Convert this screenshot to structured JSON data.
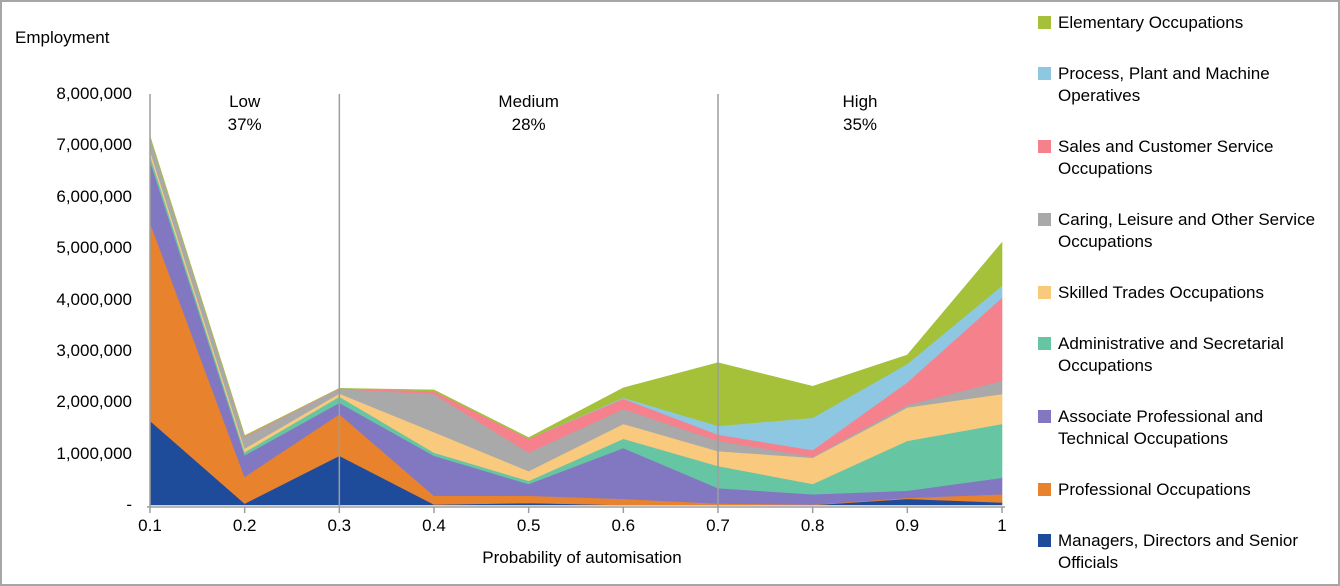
{
  "titles": {
    "y_axis_title": "Employment",
    "x_axis_title": "Probability of automisation"
  },
  "y_axis": {
    "tick_labels": [
      "8,000,000",
      "7,000,000",
      "6,000,000",
      "5,000,000",
      "4,000,000",
      "3,000,000",
      "2,000,000",
      "1,000,000",
      "-"
    ]
  },
  "x_axis": {
    "tick_labels": [
      "0.1",
      "0.2",
      "0.3",
      "0.4",
      "0.5",
      "0.6",
      "0.7",
      "0.8",
      "0.9",
      "1"
    ]
  },
  "regions": [
    {
      "name": "Low",
      "share": "37%"
    },
    {
      "name": "Medium",
      "share": "28%"
    },
    {
      "name": "High",
      "share": "35%"
    }
  ],
  "legend": {
    "items": [
      {
        "label": "Elementary Occupations",
        "color": "#A4C139"
      },
      {
        "label": "Process, Plant and Machine Operatives",
        "color": "#8EC7E2"
      },
      {
        "label": "Sales and Customer Service Occupations",
        "color": "#F5818D"
      },
      {
        "label": "Caring, Leisure and Other Service Occupations",
        "color": "#A9A9A9"
      },
      {
        "label": "Skilled Trades Occupations",
        "color": "#F9C97D"
      },
      {
        "label": "Administrative and Secretarial Occupations",
        "color": "#66C6A4"
      },
      {
        "label": "Associate Professional and Technical Occupations",
        "color": "#8278C2"
      },
      {
        "label": "Professional Occupations",
        "color": "#E8822D"
      },
      {
        "label": "Managers, Directors and Senior Officials",
        "color": "#1E4C9B"
      }
    ]
  },
  "chart_data": {
    "type": "area",
    "stacked": true,
    "title": "",
    "xlabel": "Probability of automisation",
    "ylabel": "Employment",
    "x": [
      0.1,
      0.2,
      0.3,
      0.4,
      0.5,
      0.6,
      0.7,
      0.8,
      0.9,
      1.0
    ],
    "ylim": [
      0,
      8000000
    ],
    "grid": false,
    "legend_position": "right",
    "region_dividers_x": [
      0.3,
      0.7
    ],
    "region_annotations": [
      {
        "label": "Low",
        "share": "37%",
        "x_range": [
          0.1,
          0.3
        ]
      },
      {
        "label": "Medium",
        "share": "28%",
        "x_range": [
          0.3,
          0.7
        ]
      },
      {
        "label": "High",
        "share": "35%",
        "x_range": [
          0.7,
          1.0
        ]
      }
    ],
    "series": [
      {
        "name": "Managers, Directors and Senior Officials",
        "color": "#1E4C9B",
        "values": [
          1640000,
          30000,
          960000,
          10000,
          40000,
          0,
          0,
          0,
          120000,
          50000
        ]
      },
      {
        "name": "Professional Occupations",
        "color": "#E8822D",
        "values": [
          3860000,
          520000,
          810000,
          170000,
          140000,
          120000,
          30000,
          10000,
          20000,
          160000
        ]
      },
      {
        "name": "Associate Professional and Technical Occupations",
        "color": "#8278C2",
        "values": [
          1210000,
          420000,
          220000,
          780000,
          230000,
          990000,
          300000,
          200000,
          140000,
          320000
        ]
      },
      {
        "name": "Administrative and Secretarial Occupations",
        "color": "#66C6A4",
        "values": [
          100000,
          60000,
          120000,
          60000,
          60000,
          180000,
          430000,
          200000,
          970000,
          1050000
        ]
      },
      {
        "name": "Skilled Trades Occupations",
        "color": "#F9C97D",
        "values": [
          90000,
          70000,
          60000,
          400000,
          190000,
          290000,
          290000,
          510000,
          650000,
          580000
        ]
      },
      {
        "name": "Caring, Leisure and Other Service Occupations",
        "color": "#A9A9A9",
        "values": [
          260000,
          220000,
          90000,
          740000,
          360000,
          290000,
          200000,
          20000,
          50000,
          260000
        ]
      },
      {
        "name": "Sales and Customer Service Occupations",
        "color": "#F5818D",
        "values": [
          0,
          20000,
          10000,
          60000,
          270000,
          200000,
          120000,
          130000,
          440000,
          1620000
        ]
      },
      {
        "name": "Process, Plant and Machine Operatives",
        "color": "#8EC7E2",
        "values": [
          0,
          0,
          0,
          0,
          0,
          20000,
          170000,
          630000,
          360000,
          230000
        ]
      },
      {
        "name": "Elementary Occupations",
        "color": "#A4C139",
        "values": [
          20000,
          10000,
          0,
          20000,
          20000,
          190000,
          1230000,
          610000,
          170000,
          840000
        ]
      }
    ],
    "axis_color": "#9D9D9D"
  }
}
